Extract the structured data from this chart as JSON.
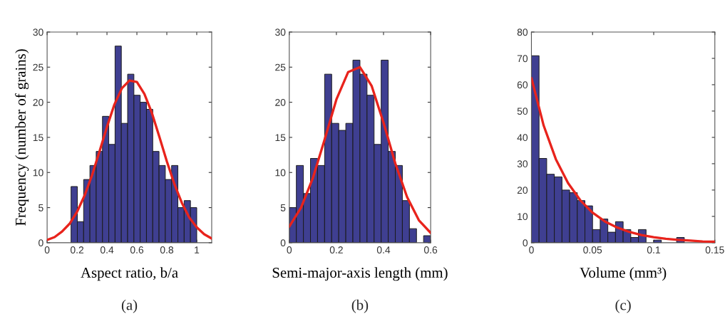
{
  "chart_data": [
    {
      "type": "histogram",
      "ylabel": "Frequency (number of grains)",
      "xlabel": "Aspect ratio, b/a",
      "annotations": [
        "(a)"
      ],
      "series": [
        {
          "type": "histogram",
          "color": "#3f3f91",
          "bins": [
            0.16,
            0.202,
            0.244,
            0.286,
            0.328,
            0.37,
            0.412,
            0.454,
            0.496,
            0.538,
            0.58,
            0.622,
            0.664,
            0.706,
            0.748,
            0.79,
            0.832,
            0.874,
            0.916,
            0.958,
            1.0
          ],
          "values": [
            8,
            3,
            9,
            11,
            13,
            18,
            14,
            28,
            17,
            24,
            21,
            20,
            19,
            13,
            11,
            9,
            11,
            5,
            6,
            5
          ]
        },
        {
          "type": "line",
          "color": "#e8231c",
          "x": [
            0,
            0.05,
            0.1,
            0.15,
            0.2,
            0.25,
            0.3,
            0.35,
            0.4,
            0.45,
            0.5,
            0.55,
            0.6,
            0.65,
            0.7,
            0.75,
            0.8,
            0.85,
            0.9,
            0.95,
            1.0,
            1.05,
            1.1
          ],
          "values": [
            0.4,
            0.8,
            1.6,
            2.7,
            4.4,
            6.7,
            9.6,
            13.0,
            16.5,
            19.7,
            22.0,
            23.1,
            22.9,
            21.2,
            18.5,
            15.1,
            11.6,
            8.4,
            5.7,
            3.6,
            2.2,
            1.2,
            0.6
          ]
        }
      ],
      "xlim": [
        0,
        1.1
      ],
      "xticks": [
        0,
        0.2,
        0.4,
        0.6,
        0.8,
        1
      ],
      "ylim": [
        0,
        30
      ],
      "yticks": [
        0,
        5,
        10,
        15,
        20,
        25,
        30
      ],
      "grid": false,
      "legend": false
    },
    {
      "type": "histogram",
      "xlabel": "Semi-major-axis length (mm)",
      "annotations": [
        "(b)"
      ],
      "series": [
        {
          "type": "histogram",
          "color": "#3f3f91",
          "bins": [
            0,
            0.03,
            0.06,
            0.09,
            0.12,
            0.15,
            0.18,
            0.21,
            0.24,
            0.27,
            0.3,
            0.33,
            0.36,
            0.39,
            0.42,
            0.45,
            0.48,
            0.51,
            0.54,
            0.57,
            0.6
          ],
          "values": [
            5,
            11,
            7,
            12,
            11,
            24,
            17,
            16,
            17,
            26,
            24,
            21,
            14,
            26,
            13,
            11,
            6,
            2,
            0,
            1
          ]
        },
        {
          "type": "line",
          "color": "#e8231c",
          "x": [
            0,
            0.05,
            0.1,
            0.15,
            0.2,
            0.25,
            0.3,
            0.35,
            0.4,
            0.45,
            0.5,
            0.55,
            0.6
          ],
          "values": [
            2.3,
            5.0,
            9.2,
            14.7,
            20.4,
            24.3,
            25.0,
            22.3,
            17.1,
            11.3,
            6.5,
            3.2,
            1.4
          ]
        }
      ],
      "xlim": [
        0,
        0.6
      ],
      "xticks": [
        0,
        0.2,
        0.4,
        0.6
      ],
      "ylim": [
        0,
        30
      ],
      "yticks": [
        0,
        5,
        10,
        15,
        20,
        25,
        30
      ],
      "grid": false,
      "legend": false
    },
    {
      "type": "histogram",
      "xlabel": "Volume (mm³)",
      "annotations": [
        "(c)"
      ],
      "series": [
        {
          "type": "histogram",
          "color": "#3f3f91",
          "bins": [
            0,
            0.00625,
            0.0125,
            0.01875,
            0.025,
            0.03125,
            0.0375,
            0.04375,
            0.05,
            0.05625,
            0.0625,
            0.06875,
            0.075,
            0.08125,
            0.0875,
            0.09375,
            0.1,
            0.10625,
            0.1125,
            0.11875,
            0.125
          ],
          "values": [
            71,
            32,
            26,
            25,
            20,
            19,
            16,
            14,
            5,
            9,
            4,
            8,
            5,
            2,
            5,
            0,
            1,
            0,
            0,
            2
          ]
        },
        {
          "type": "line",
          "color": "#e8231c",
          "x": [
            0,
            0.01,
            0.02,
            0.03,
            0.04,
            0.05,
            0.06,
            0.07,
            0.08,
            0.09,
            0.1,
            0.11,
            0.12,
            0.13,
            0.14,
            0.15
          ],
          "values": [
            62.5,
            44.5,
            31.7,
            22.6,
            16.1,
            11.4,
            8.1,
            5.8,
            4.1,
            2.9,
            2.1,
            1.5,
            1.1,
            0.8,
            0.5,
            0.4
          ]
        }
      ],
      "xlim": [
        0,
        0.15
      ],
      "xticks": [
        0,
        0.05,
        0.1,
        0.15
      ],
      "ylim": [
        0,
        80
      ],
      "yticks": [
        0,
        10,
        20,
        30,
        40,
        50,
        60,
        70,
        80
      ],
      "grid": false,
      "legend": false
    }
  ]
}
